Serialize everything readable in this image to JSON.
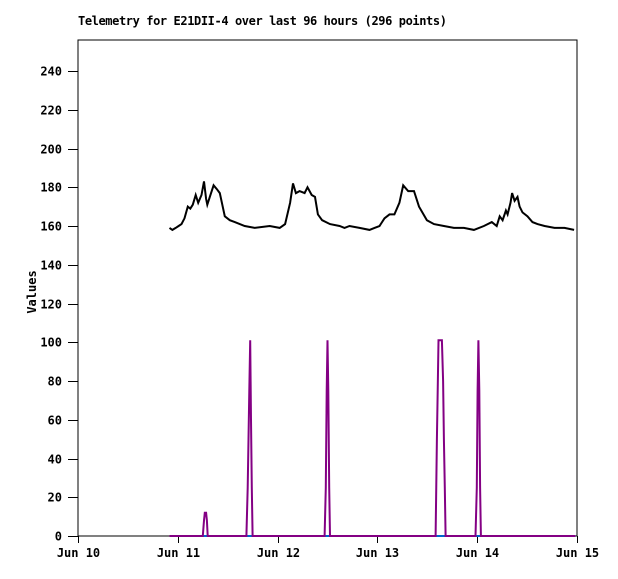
{
  "chart_data": {
    "type": "line",
    "title": "Telemetry for E21DII-4 over last 96 hours (296 points)",
    "ylabel": "Values",
    "xlabel": "",
    "x_unit": "hours since Jun 10 00:00",
    "xlim": [
      0,
      120
    ],
    "ylim": [
      0,
      256
    ],
    "grid": false,
    "legend": "none",
    "axis_color": "#000000",
    "background_color": "#ffffff",
    "y_ticks": [
      0,
      20,
      40,
      60,
      80,
      100,
      120,
      140,
      160,
      180,
      200,
      220,
      240
    ],
    "x_ticks": [
      {
        "t": 0,
        "label": "Jun 10"
      },
      {
        "t": 24,
        "label": "Jun 11"
      },
      {
        "t": 48,
        "label": "Jun 12"
      },
      {
        "t": 72,
        "label": "Jun 13"
      },
      {
        "t": 96,
        "label": "Jun 14"
      },
      {
        "t": 120,
        "label": "Jun 15"
      }
    ],
    "series": [
      {
        "name": "blue-line",
        "color": "#0066cc",
        "width": 2,
        "points": [
          [
            22.0,
            0
          ],
          [
            119.6,
            0
          ]
        ]
      },
      {
        "name": "purple-line",
        "color": "#840084",
        "width": 2,
        "points": [
          [
            22.0,
            0
          ],
          [
            30.0,
            0
          ],
          [
            30.3,
            8
          ],
          [
            30.5,
            12
          ],
          [
            30.8,
            12
          ],
          [
            31.0,
            8
          ],
          [
            31.2,
            0
          ],
          [
            40.5,
            0
          ],
          [
            40.8,
            25
          ],
          [
            41.0,
            50
          ],
          [
            41.2,
            75
          ],
          [
            41.4,
            101
          ],
          [
            41.6,
            60
          ],
          [
            41.8,
            25
          ],
          [
            42.0,
            0
          ],
          [
            59.3,
            0
          ],
          [
            59.6,
            25
          ],
          [
            59.8,
            75
          ],
          [
            60.0,
            101
          ],
          [
            60.2,
            75
          ],
          [
            60.4,
            25
          ],
          [
            60.6,
            0
          ],
          [
            86.0,
            0
          ],
          [
            86.3,
            50
          ],
          [
            86.5,
            75
          ],
          [
            86.7,
            101
          ],
          [
            87.5,
            101
          ],
          [
            87.8,
            80
          ],
          [
            88.0,
            50
          ],
          [
            88.2,
            25
          ],
          [
            88.4,
            0
          ],
          [
            95.6,
            0
          ],
          [
            95.9,
            25
          ],
          [
            96.1,
            75
          ],
          [
            96.3,
            101
          ],
          [
            96.5,
            75
          ],
          [
            96.7,
            25
          ],
          [
            96.9,
            0
          ],
          [
            119.6,
            0
          ]
        ]
      },
      {
        "name": "black-line",
        "color": "#000000",
        "width": 2,
        "points": [
          [
            22.0,
            159
          ],
          [
            22.7,
            158
          ],
          [
            23.5,
            159
          ],
          [
            24.2,
            160
          ],
          [
            24.9,
            161
          ],
          [
            25.6,
            164
          ],
          [
            26.4,
            170
          ],
          [
            27.0,
            169
          ],
          [
            27.6,
            171
          ],
          [
            28.3,
            176
          ],
          [
            28.9,
            172
          ],
          [
            29.7,
            176
          ],
          [
            30.3,
            183
          ],
          [
            30.8,
            174
          ],
          [
            31.1,
            171
          ],
          [
            31.7,
            175
          ],
          [
            32.6,
            181
          ],
          [
            33.4,
            179
          ],
          [
            34.1,
            177
          ],
          [
            35.3,
            165
          ],
          [
            36.5,
            163
          ],
          [
            37.7,
            162
          ],
          [
            40.1,
            160
          ],
          [
            42.5,
            159
          ],
          [
            46.1,
            160
          ],
          [
            48.5,
            159
          ],
          [
            49.8,
            161
          ],
          [
            51.0,
            172
          ],
          [
            51.7,
            182
          ],
          [
            52.4,
            177
          ],
          [
            53.3,
            178
          ],
          [
            54.5,
            177
          ],
          [
            55.2,
            180
          ],
          [
            56.2,
            176
          ],
          [
            57.0,
            175
          ],
          [
            57.7,
            166
          ],
          [
            58.7,
            163
          ],
          [
            60.6,
            161
          ],
          [
            62.9,
            160
          ],
          [
            64.1,
            159
          ],
          [
            65.3,
            160
          ],
          [
            67.7,
            159
          ],
          [
            70.1,
            158
          ],
          [
            71.3,
            159
          ],
          [
            72.5,
            160
          ],
          [
            73.7,
            164
          ],
          [
            74.9,
            166
          ],
          [
            76.1,
            166
          ],
          [
            77.3,
            172
          ],
          [
            78.2,
            181
          ],
          [
            79.4,
            178
          ],
          [
            80.8,
            178
          ],
          [
            82.0,
            170
          ],
          [
            83.9,
            163
          ],
          [
            85.6,
            161
          ],
          [
            88.0,
            160
          ],
          [
            90.4,
            159
          ],
          [
            92.8,
            159
          ],
          [
            95.2,
            158
          ],
          [
            97.6,
            160
          ],
          [
            99.5,
            162
          ],
          [
            100.7,
            160
          ],
          [
            101.4,
            165
          ],
          [
            102.1,
            163
          ],
          [
            102.9,
            168
          ],
          [
            103.3,
            166
          ],
          [
            104.0,
            172
          ],
          [
            104.4,
            177
          ],
          [
            105.0,
            173
          ],
          [
            105.7,
            175
          ],
          [
            106.2,
            170
          ],
          [
            106.9,
            167
          ],
          [
            108.1,
            165
          ],
          [
            109.3,
            162
          ],
          [
            110.5,
            161
          ],
          [
            112.2,
            160
          ],
          [
            114.6,
            159
          ],
          [
            117.0,
            159
          ],
          [
            119.3,
            158
          ]
        ]
      }
    ]
  }
}
